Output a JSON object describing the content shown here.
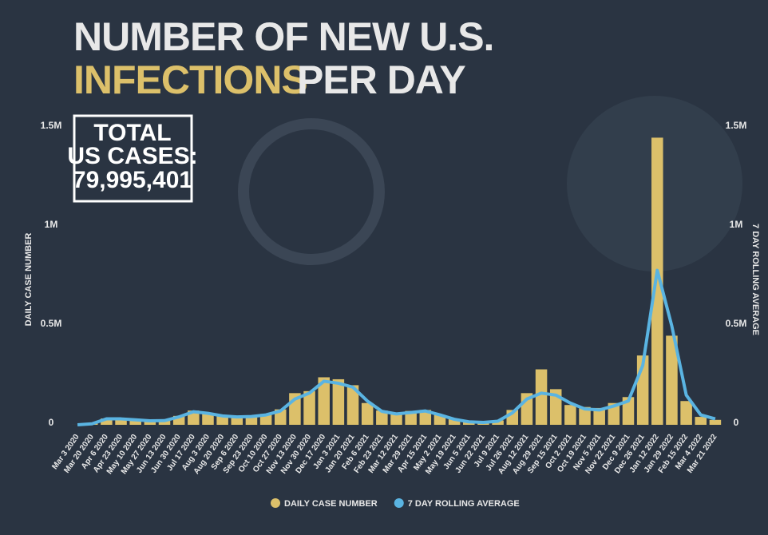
{
  "chart_data": {
    "type": "bar-line",
    "title": {
      "line1": "NUMBER OF NEW U.S.",
      "highlight": "INFECTIONS",
      "rest": "PER DAY"
    },
    "total_box": [
      "TOTAL",
      "US CASES:",
      "79,995,401"
    ],
    "y_label": "DAILY CASE NUMBER",
    "y2_label": "7 DAY ROLLING AVERAGE",
    "categories": [
      "Mar 3 2020",
      "Mar 20 2020",
      "Apr 6 2020",
      "Apr 23 2020",
      "May 10 2020",
      "May 27 2020",
      "Jun 13 2020",
      "Jun 30 2020",
      "Jul 17 2020",
      "Aug 3 2020",
      "Aug 20 2020",
      "Sep 6 2020",
      "Sep 23 2020",
      "Oct 10 2020",
      "Oct 27 2020",
      "Nov 13 2020",
      "Nov 30 2020",
      "Dec 17 2020",
      "Jan 3 2021",
      "Jan 20 2021",
      "Feb 6 2021",
      "Feb 23 2021",
      "Mar 12 2021",
      "Mar 29 2021",
      "Apr 15 2021",
      "May 2 2021",
      "May 19 2021",
      "Jun 5 2021",
      "Jun 22 2021",
      "Jul 9 2021",
      "Jul 26 2021",
      "Aug 12 2021",
      "Aug 29 2021",
      "Sep 15 2021",
      "Oct 2 2021",
      "Oct 19 2021",
      "Nov 5 2021",
      "Nov 22 2021",
      "Dec 9 2021",
      "Dec 26 2021",
      "Jan 12 2022",
      "Jan 29 2022",
      "Feb 15 2022",
      "Mar 4 2022",
      "Mar 21 2022"
    ],
    "series": [
      {
        "name": "DAILY CASE NUMBER",
        "color": "#dcc06a",
        "values": [
          100,
          8000,
          32000,
          35000,
          27000,
          22000,
          25000,
          45000,
          72000,
          55000,
          48000,
          35000,
          45000,
          55000,
          78000,
          160000,
          170000,
          240000,
          230000,
          200000,
          110000,
          72000,
          60000,
          70000,
          75000,
          50000,
          30000,
          12000,
          10000,
          22000,
          75000,
          160000,
          280000,
          180000,
          100000,
          90000,
          85000,
          110000,
          140000,
          350000,
          1450000,
          450000,
          120000,
          40000,
          25000
        ]
      },
      {
        "name": "7 DAY ROLLING AVERAGE",
        "color": "#5ab4e2",
        "axis": "y2",
        "values": [
          100,
          5000,
          30000,
          30000,
          25000,
          20000,
          21000,
          40000,
          66000,
          58000,
          45000,
          40000,
          42000,
          50000,
          70000,
          130000,
          160000,
          220000,
          210000,
          190000,
          120000,
          68000,
          55000,
          62000,
          70000,
          50000,
          28000,
          15000,
          12000,
          18000,
          60000,
          130000,
          160000,
          150000,
          110000,
          80000,
          75000,
          95000,
          120000,
          300000,
          780000,
          500000,
          150000,
          50000,
          30000
        ]
      }
    ],
    "ylim": [
      0,
      1500000
    ],
    "yticks": [
      {
        "value": 0,
        "label": "0"
      },
      {
        "value": 500000,
        "label": "0.5M"
      },
      {
        "value": 1000000,
        "label": "1M"
      },
      {
        "value": 1500000,
        "label": "1.5M"
      }
    ],
    "y2lim": [
      0,
      1500000
    ],
    "y2ticks": [
      {
        "value": 0,
        "label": "0"
      },
      {
        "value": 500000,
        "label": "0.5M"
      },
      {
        "value": 1000000,
        "label": "1M"
      },
      {
        "value": 1500000,
        "label": "1.5M"
      }
    ],
    "legend": "bottom",
    "grid": false
  }
}
